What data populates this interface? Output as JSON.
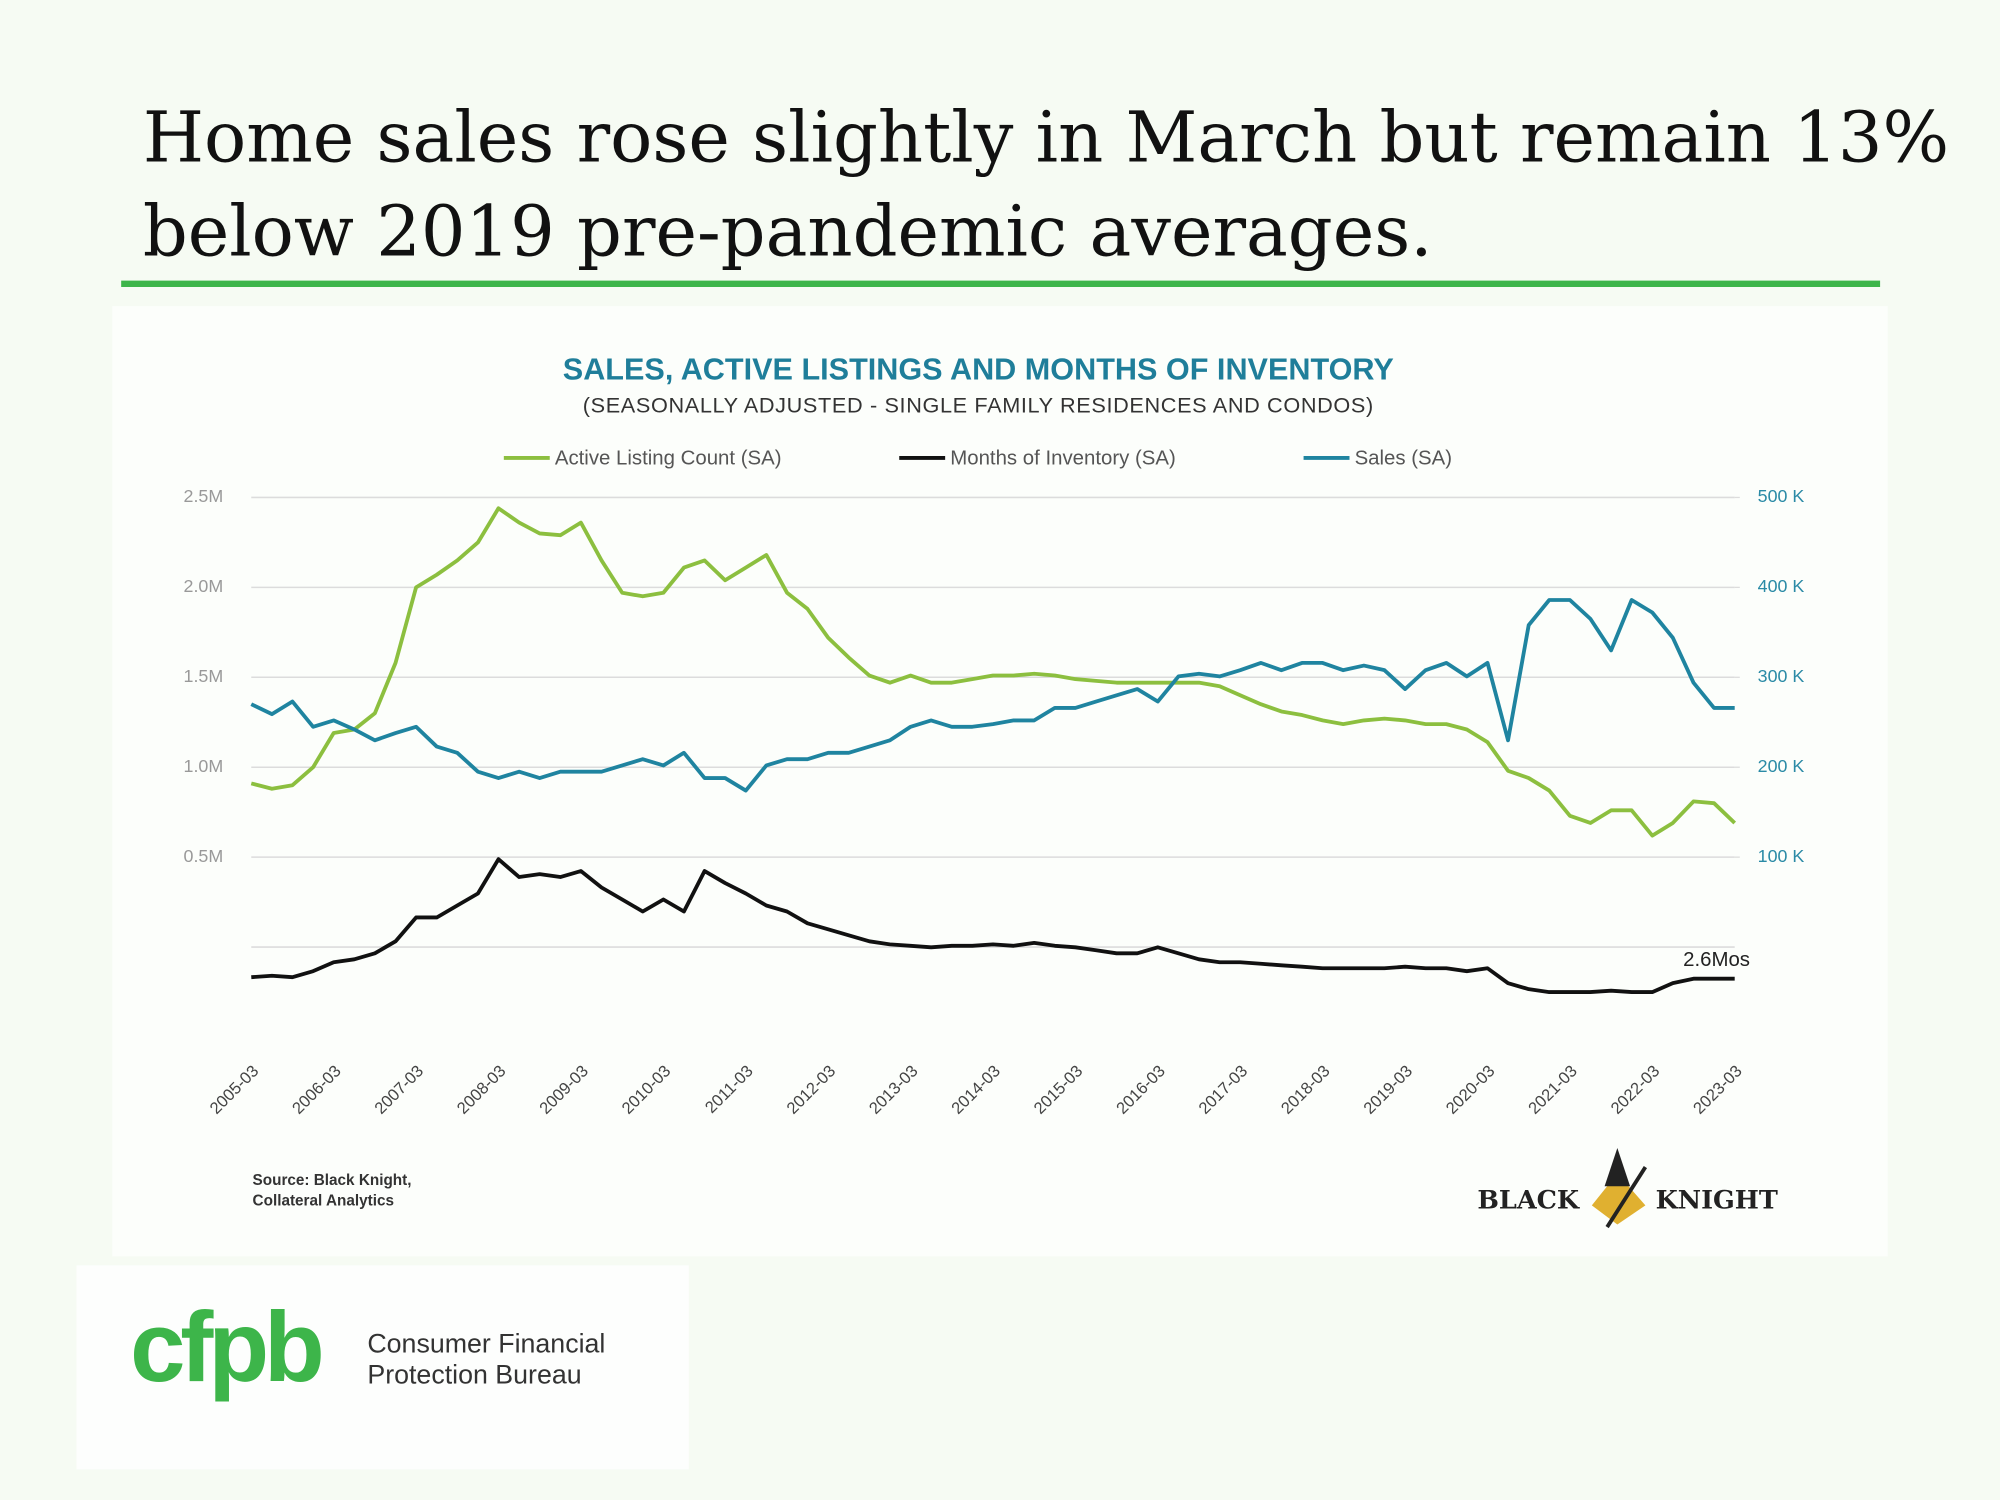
{
  "slide": {
    "title_lines": [
      "Home sales rose slightly in March but remain 13%",
      "below 2019 pre-pandemic averages."
    ],
    "source_lines": [
      "Source: Black Knight,",
      "Collateral Analytics"
    ],
    "brand": {
      "left": "BLACK",
      "right": "KNIGHT"
    },
    "footer": {
      "logo": "cfpb",
      "lines": [
        "Consumer Financial",
        "Protection Bureau"
      ]
    }
  },
  "chart_data": {
    "type": "line",
    "title": "SALES, ACTIVE LISTINGS AND MONTHS OF INVENTORY",
    "subtitle": "(SEASONALLY ADJUSTED - SINGLE FAMILY RESIDENCES AND CONDOS)",
    "x": [
      "2005-03",
      null,
      null,
      null,
      "2006-03",
      null,
      null,
      null,
      "2007-03",
      null,
      null,
      null,
      "2008-03",
      null,
      null,
      null,
      "2009-03",
      null,
      null,
      null,
      "2010-03",
      null,
      null,
      null,
      "2011-03",
      null,
      null,
      null,
      "2012-03",
      null,
      null,
      null,
      "2013-03",
      null,
      null,
      null,
      "2014-03",
      null,
      null,
      null,
      "2015-03",
      null,
      null,
      null,
      "2016-03",
      null,
      null,
      null,
      "2017-03",
      null,
      null,
      null,
      "2018-03",
      null,
      null,
      null,
      "2019-03",
      null,
      null,
      null,
      "2020-03",
      null,
      null,
      null,
      "2021-03",
      null,
      null,
      null,
      "2022-03",
      null,
      null,
      null,
      "2023-03"
    ],
    "ylim": [
      -0.5,
      2.5
    ],
    "yticks": [
      {
        "value": 0.5,
        "label": "0.5M"
      },
      {
        "value": 1.0,
        "label": "1.0M"
      },
      {
        "value": 1.5,
        "label": "1.5M"
      },
      {
        "value": 2.0,
        "label": "2.0M"
      },
      {
        "value": 2.5,
        "label": "2.5M"
      },
      {
        "value": 0,
        "label": null
      }
    ],
    "y2lim": [
      -100,
      500
    ],
    "y2ticks": [
      {
        "value": 100,
        "label": "100 K"
      },
      {
        "value": 200,
        "label": "200 K"
      },
      {
        "value": 300,
        "label": "300 K"
      },
      {
        "value": 400,
        "label": "400 K"
      },
      {
        "value": 500,
        "label": "500 K"
      }
    ],
    "y3lim": [
      -1.3,
      34.8
    ],
    "grid": true,
    "series": [
      {
        "name": "Active  Listing Count (SA)",
        "color": "#8cbf3f",
        "axis": "y",
        "values": [
          0.91,
          0.88,
          0.9,
          1.0,
          1.19,
          1.21,
          1.3,
          1.58,
          2.0,
          2.07,
          2.15,
          2.25,
          2.44,
          2.36,
          2.3,
          2.29,
          2.36,
          2.15,
          1.97,
          1.95,
          1.97,
          2.11,
          2.15,
          2.04,
          2.11,
          2.18,
          1.97,
          1.88,
          1.72,
          1.61,
          1.51,
          1.47,
          1.51,
          1.47,
          1.47,
          1.49,
          1.51,
          1.51,
          1.52,
          1.51,
          1.49,
          1.48,
          1.47,
          1.47,
          1.47,
          1.47,
          1.47,
          1.45,
          1.4,
          1.35,
          1.31,
          1.29,
          1.26,
          1.24,
          1.26,
          1.27,
          1.26,
          1.24,
          1.24,
          1.21,
          1.14,
          0.98,
          0.94,
          0.87,
          0.73,
          0.69,
          0.76,
          0.76,
          0.62,
          0.69,
          0.81,
          0.8,
          0.69
        ]
      },
      {
        "name": "Months of Inventory (SA)",
        "color": "#111111",
        "axis": "y3",
        "values": [
          2.7,
          2.8,
          2.7,
          3.1,
          3.7,
          3.9,
          4.3,
          5.1,
          6.7,
          6.7,
          7.5,
          8.3,
          10.6,
          9.4,
          9.6,
          9.4,
          9.8,
          8.7,
          7.9,
          7.1,
          7.9,
          7.1,
          9.8,
          9.0,
          8.3,
          7.5,
          7.1,
          6.3,
          5.9,
          5.5,
          5.1,
          4.9,
          4.8,
          4.7,
          4.8,
          4.8,
          4.9,
          4.8,
          5.0,
          4.8,
          4.7,
          4.5,
          4.3,
          4.3,
          4.7,
          4.3,
          3.9,
          3.7,
          3.7,
          3.6,
          3.5,
          3.4,
          3.3,
          3.3,
          3.3,
          3.3,
          3.4,
          3.3,
          3.3,
          3.1,
          3.3,
          2.3,
          1.9,
          1.7,
          1.7,
          1.7,
          1.8,
          1.7,
          1.7,
          2.3,
          2.6,
          2.6,
          2.6
        ],
        "value_labels": [
          null,
          null,
          null,
          null,
          null,
          null,
          null,
          null,
          null,
          null,
          null,
          null,
          null,
          null,
          null,
          null,
          null,
          null,
          null,
          null,
          null,
          null,
          null,
          null,
          null,
          null,
          null,
          null,
          null,
          null,
          null,
          null,
          null,
          null,
          null,
          null,
          null,
          null,
          null,
          null,
          null,
          null,
          null,
          null,
          null,
          null,
          null,
          null,
          null,
          null,
          null,
          null,
          null,
          null,
          null,
          null,
          null,
          null,
          null,
          null,
          null,
          null,
          null,
          null,
          null,
          null,
          null,
          null,
          null,
          null,
          null,
          null,
          "2.6Mos"
        ]
      },
      {
        "name": "Sales (SA)",
        "color": "#1f84a0",
        "axis": "y2",
        "values": [
          270,
          259,
          273,
          245,
          252,
          242,
          230,
          238,
          245,
          223,
          216,
          195,
          188,
          195,
          188,
          195,
          195,
          195,
          202,
          209,
          202,
          216,
          188,
          188,
          174,
          202,
          209,
          209,
          216,
          216,
          223,
          230,
          245,
          252,
          245,
          245,
          248,
          252,
          252,
          266,
          266,
          273,
          280,
          287,
          273,
          301,
          304,
          301,
          308,
          316,
          308,
          316,
          316,
          308,
          313,
          308,
          287,
          308,
          316,
          301,
          316,
          230,
          358,
          386,
          386,
          365,
          330,
          386,
          372,
          344,
          294,
          266,
          266
        ]
      }
    ]
  }
}
